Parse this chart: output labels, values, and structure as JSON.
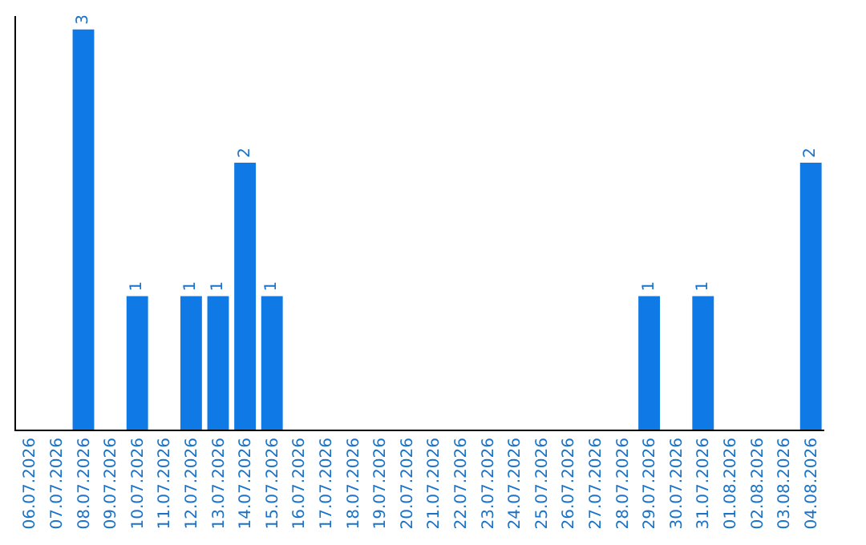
{
  "chart_data": {
    "type": "bar",
    "categories": [
      "06.07.2026",
      "07.07.2026",
      "08.07.2026",
      "09.07.2026",
      "10.07.2026",
      "11.07.2026",
      "12.07.2026",
      "13.07.2026",
      "14.07.2026",
      "15.07.2026",
      "16.07.2026",
      "17.07.2026",
      "18.07.2026",
      "19.07.2026",
      "20.07.2026",
      "21.07.2026",
      "22.07.2026",
      "23.07.2026",
      "24.07.2026",
      "25.07.2026",
      "26.07.2026",
      "27.07.2026",
      "28.07.2026",
      "29.07.2026",
      "30.07.2026",
      "31.07.2026",
      "01.08.2026",
      "02.08.2026",
      "03.08.2026",
      "04.08.2026"
    ],
    "values": [
      0,
      0,
      3,
      0,
      1,
      0,
      1,
      1,
      2,
      1,
      0,
      0,
      0,
      0,
      0,
      0,
      0,
      0,
      0,
      0,
      0,
      0,
      0,
      1,
      0,
      1,
      0,
      0,
      0,
      2
    ],
    "value_labels": [
      null,
      null,
      "3",
      null,
      "1",
      null,
      "1",
      "1",
      "2",
      "1",
      null,
      null,
      null,
      null,
      null,
      null,
      null,
      null,
      null,
      null,
      null,
      null,
      null,
      "1",
      null,
      "1",
      null,
      null,
      null,
      "2"
    ],
    "color": "#0f7ae5",
    "ylim": [
      0,
      3.1
    ],
    "tick_labels": "x"
  }
}
